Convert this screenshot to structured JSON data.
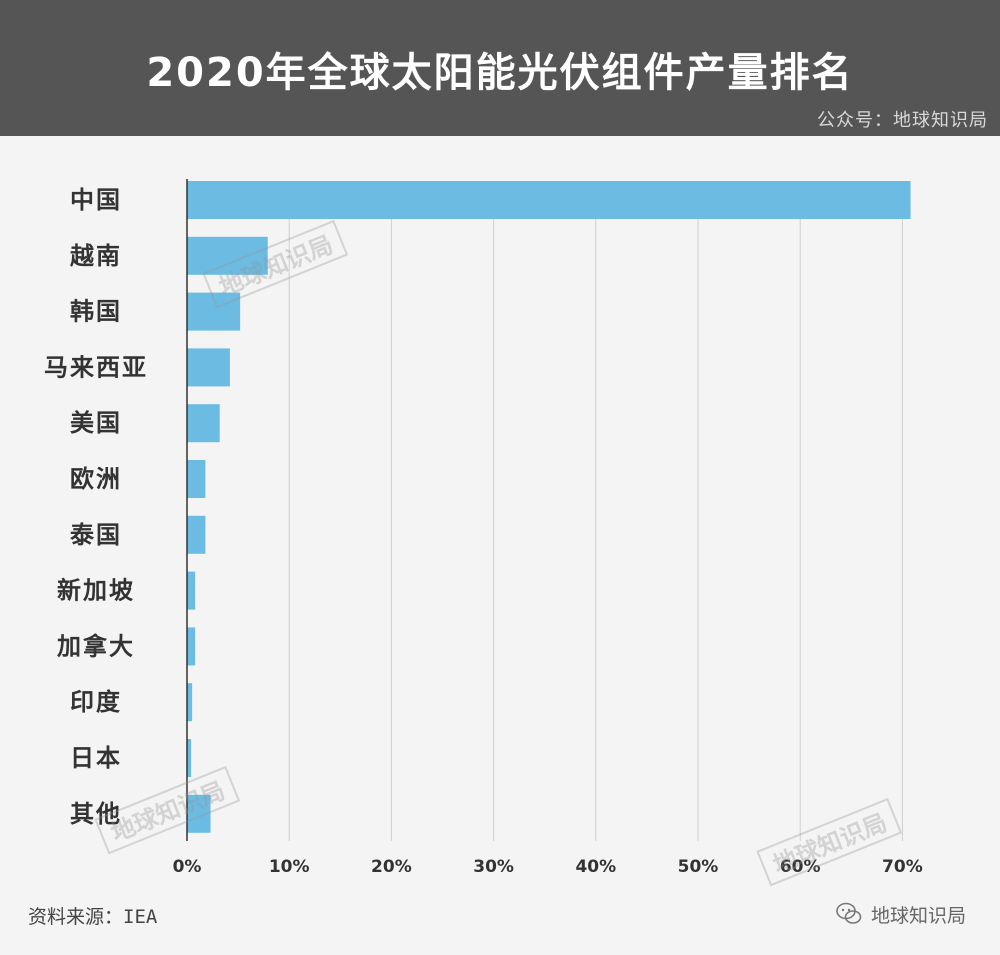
{
  "header": {
    "title": "2020年全球太阳能光伏组件产量排名",
    "account": "公众号：地球知识局"
  },
  "watermark": "地球知识局",
  "footer": {
    "source": "资料来源：IEA",
    "brand": "地球知识局"
  },
  "colors": {
    "header_bg": "#555555",
    "bar": "#6bbbe3",
    "grid": "#cfcfcf"
  },
  "chart_data": {
    "type": "bar",
    "orientation": "horizontal",
    "categories": [
      "中国",
      "越南",
      "韩国",
      "马来西亚",
      "美国",
      "欧洲",
      "泰国",
      "新加坡",
      "加拿大",
      "印度",
      "日本",
      "其他"
    ],
    "values": [
      70.8,
      7.9,
      5.2,
      4.2,
      3.2,
      1.8,
      1.8,
      0.8,
      0.8,
      0.5,
      0.4,
      2.3
    ],
    "xlim": [
      0,
      70
    ],
    "ticks": [
      0,
      10,
      20,
      30,
      40,
      50,
      60,
      70
    ],
    "tick_labels": [
      "0%",
      "10%",
      "20%",
      "30%",
      "40%",
      "50%",
      "60%",
      "70%"
    ],
    "grid": true
  }
}
